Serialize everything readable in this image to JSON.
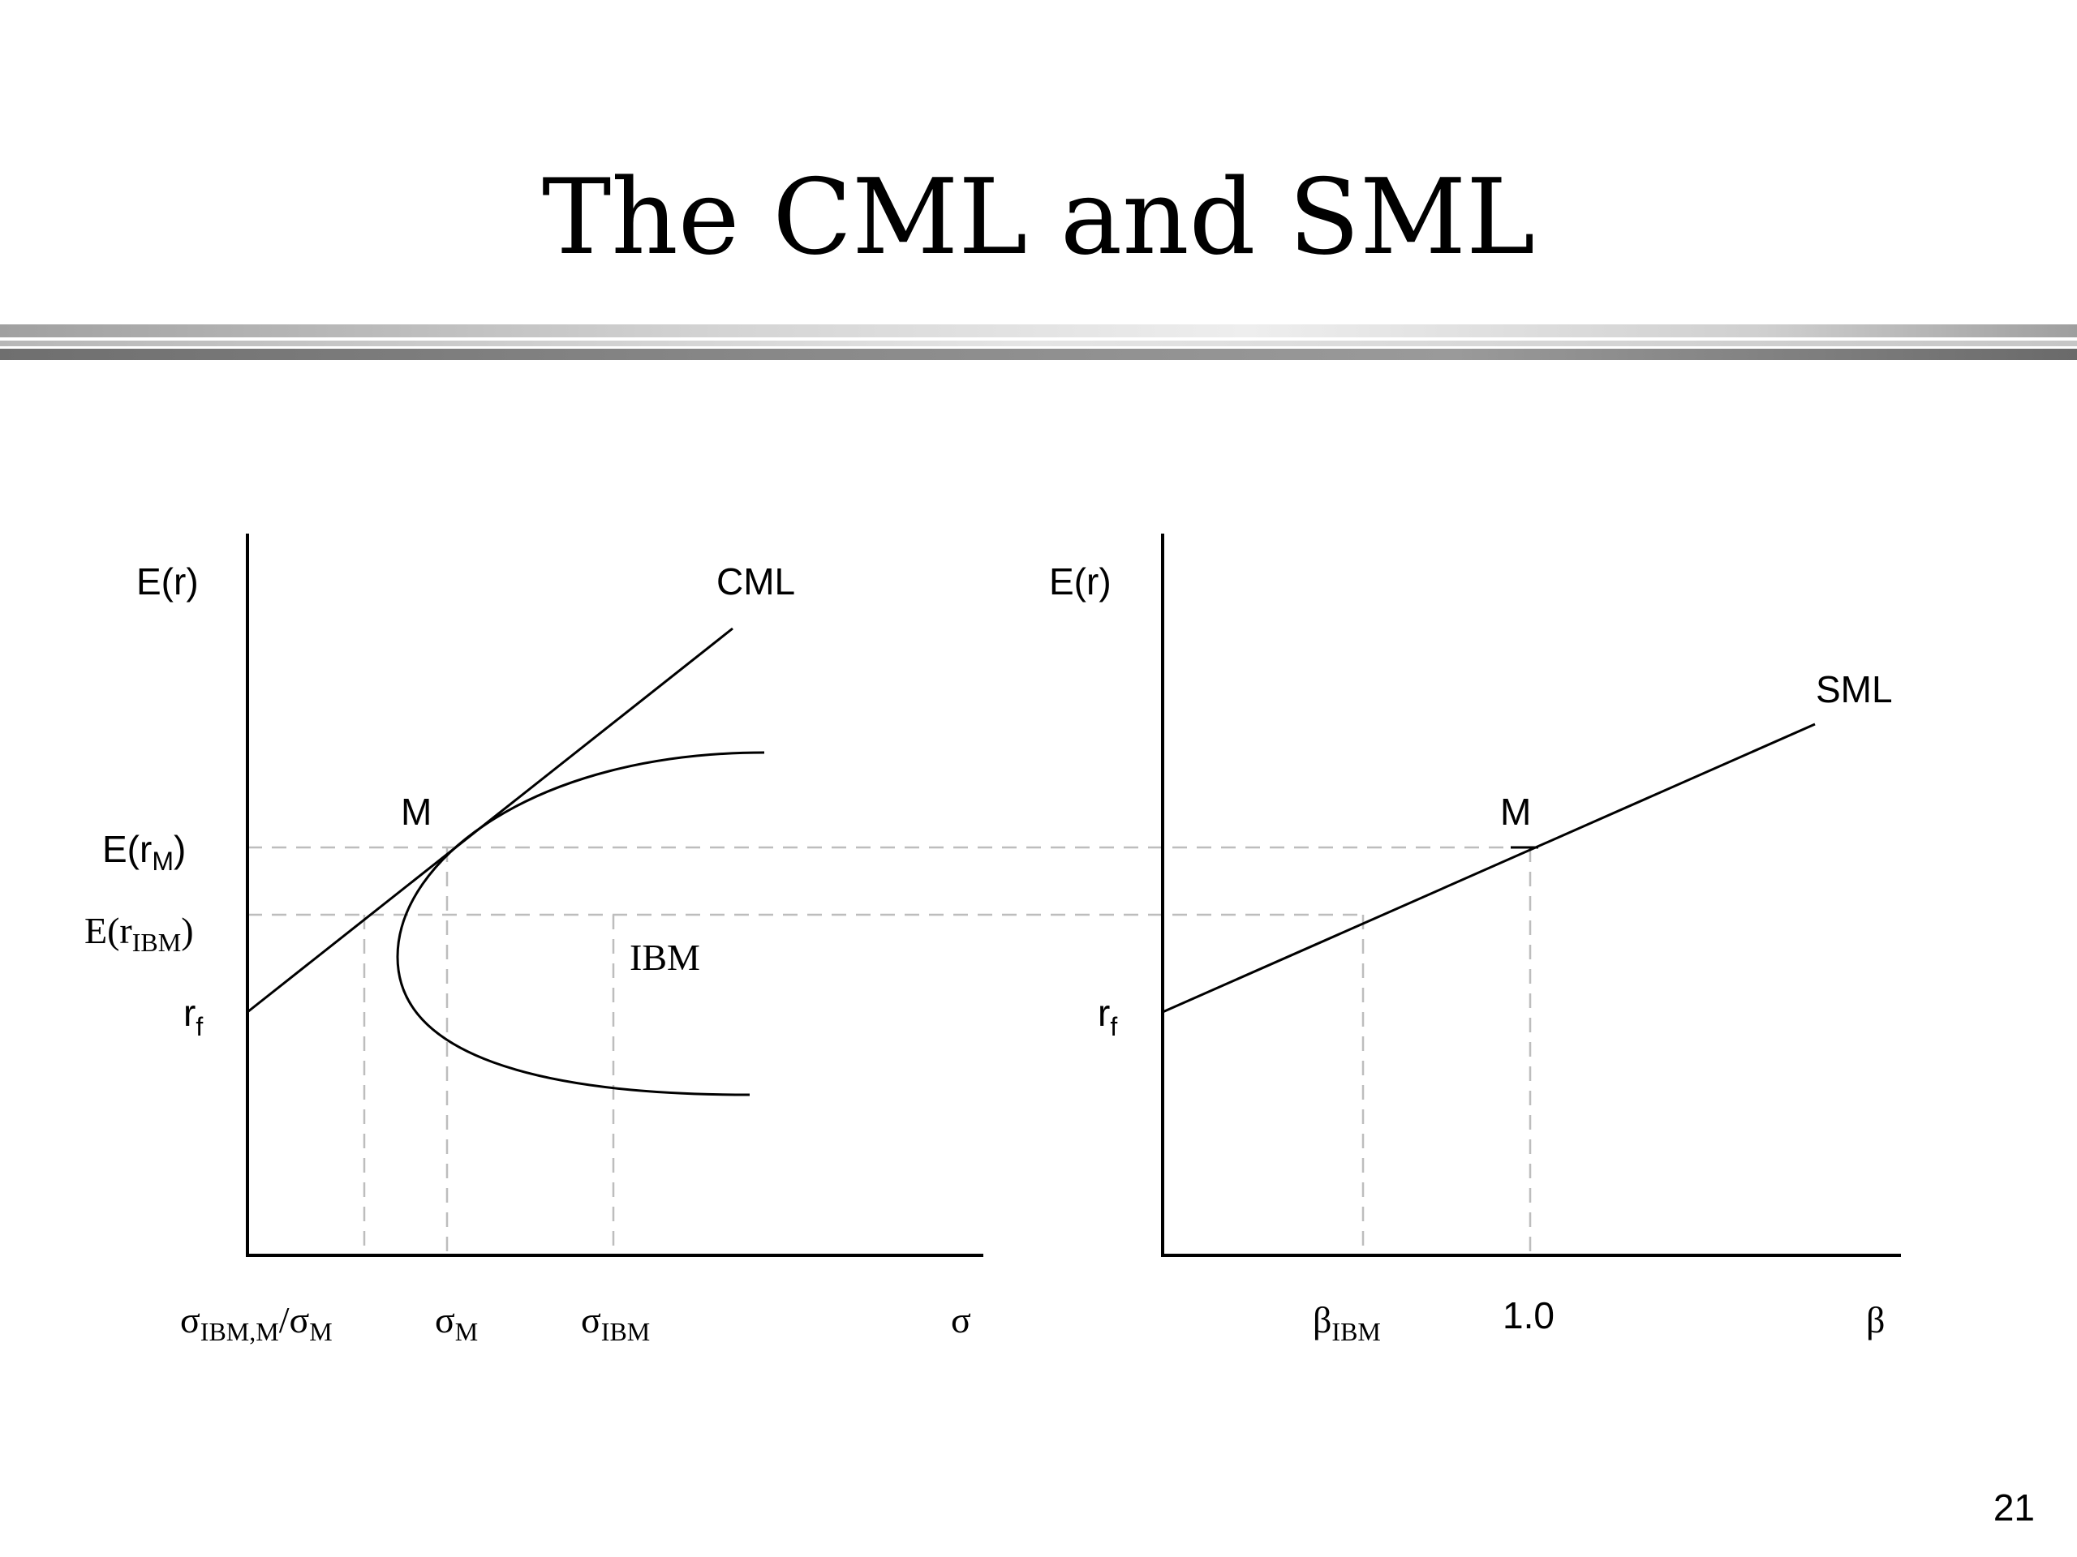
{
  "slide": {
    "title": "The CML and SML",
    "page_number": "21"
  },
  "cml_panel": {
    "y_axis_label": {
      "base": "E(r)"
    },
    "x_axis_label": {
      "base": "σ"
    },
    "line_label": "CML",
    "point_label": "M",
    "asset_label": "IBM",
    "y_ticks": [
      {
        "base": "E(r",
        "sub": "M",
        "after": ")"
      },
      {
        "base": "E(r",
        "sub": "IBM",
        "after": ")"
      },
      {
        "base": "r",
        "sub": "f",
        "after": ""
      }
    ],
    "x_ticks": [
      {
        "base": "σ",
        "sub": "IBM,M",
        "mid": "/σ",
        "sub2": "M"
      },
      {
        "base": "σ",
        "sub": "M"
      },
      {
        "base": "σ",
        "sub": "IBM"
      }
    ]
  },
  "sml_panel": {
    "y_axis_label": {
      "base": "E(r)"
    },
    "x_axis_label": {
      "base": "β"
    },
    "line_label": "SML",
    "point_label": "M",
    "y_ticks": [
      {
        "base": "r",
        "sub": "f"
      }
    ],
    "x_ticks": [
      {
        "base": "β",
        "sub": "IBM"
      },
      {
        "base": "1.0"
      }
    ]
  }
}
